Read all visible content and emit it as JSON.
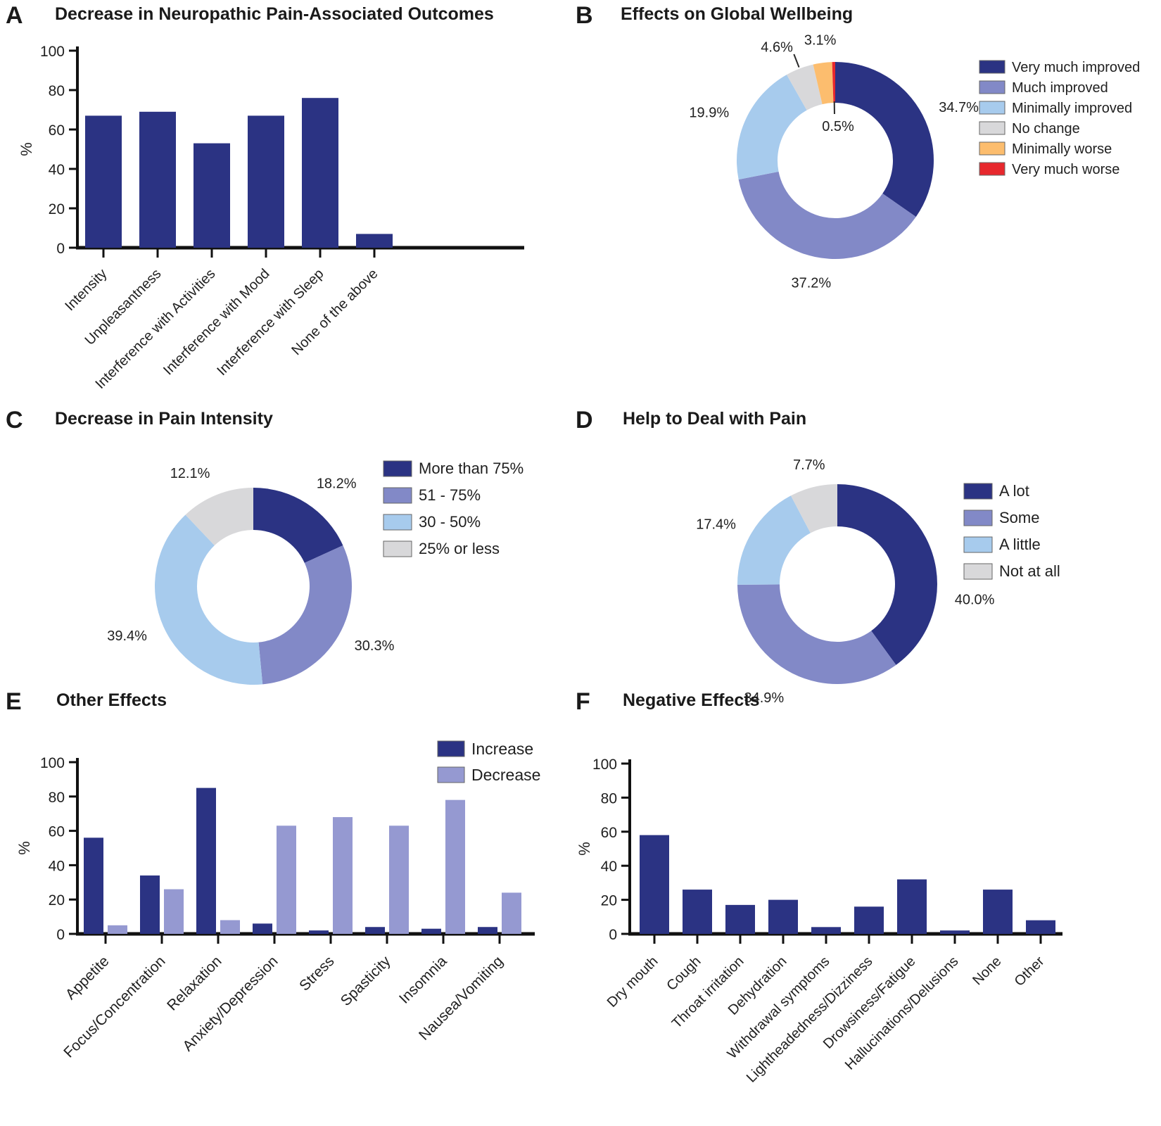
{
  "colors": {
    "navy": "#2b3383",
    "purple": "#8289c7",
    "purple_light": "#9599d1",
    "light_blue": "#a7cbed",
    "gray": "#d8d8da",
    "orange": "#fcbd6e",
    "red": "#e7282d",
    "axis": "#111111",
    "text": "#1f1f1f"
  },
  "chart_data": [
    {
      "panel_letter": "A",
      "title": "Decrease in Neuropathic Pain-Associated Outcomes",
      "type": "bar",
      "ylabel": "%",
      "ylim": [
        0,
        100
      ],
      "yticks": [
        0,
        20,
        40,
        60,
        80,
        100
      ],
      "grid": false,
      "bar_color": "navy",
      "categories": [
        "Intensity",
        "Unpleasantness",
        "Interference with Activities",
        "Interference with Mood",
        "Interference with Sleep",
        "None of the above"
      ],
      "values": [
        67,
        69,
        53,
        67,
        76,
        7
      ]
    },
    {
      "panel_letter": "B",
      "title": "Effects on Global Wellbeing",
      "type": "pie",
      "donut": true,
      "legend_position": "right",
      "slices": [
        {
          "label": "Very much improved",
          "value": 34.7,
          "pct_label": "34.7%",
          "color": "navy"
        },
        {
          "label": "Much improved",
          "value": 37.2,
          "pct_label": "37.2%",
          "color": "purple"
        },
        {
          "label": "Minimally improved",
          "value": 19.9,
          "pct_label": "19.9%",
          "color": "light_blue"
        },
        {
          "label": "No change",
          "value": 4.6,
          "pct_label": "4.6%",
          "color": "gray",
          "leader": true
        },
        {
          "label": "Minimally worse",
          "value": 3.1,
          "pct_label": "3.1%",
          "color": "orange"
        },
        {
          "label": "Very much worse",
          "value": 0.5,
          "pct_label": "0.5%",
          "color": "red",
          "label_inside": true
        }
      ]
    },
    {
      "panel_letter": "C",
      "title": "Decrease in Pain Intensity",
      "type": "pie",
      "donut": true,
      "legend_position": "right",
      "slices": [
        {
          "label": "More than 75%",
          "value": 18.2,
          "pct_label": "18.2%",
          "color": "navy"
        },
        {
          "label": "51 - 75%",
          "value": 30.3,
          "pct_label": "30.3%",
          "color": "purple"
        },
        {
          "label": "30 - 50%",
          "value": 39.4,
          "pct_label": "39.4%",
          "color": "light_blue"
        },
        {
          "label": "25% or less",
          "value": 12.1,
          "pct_label": "12.1%",
          "color": "gray"
        }
      ]
    },
    {
      "panel_letter": "D",
      "title": "Help to Deal with Pain",
      "type": "pie",
      "donut": true,
      "legend_position": "right",
      "slices": [
        {
          "label": "A lot",
          "value": 40.0,
          "pct_label": "40.0%",
          "color": "navy",
          "label_angle": 97
        },
        {
          "label": "Some",
          "value": 34.9,
          "pct_label": "34.9%",
          "color": "purple"
        },
        {
          "label": "A little",
          "value": 17.4,
          "pct_label": "17.4%",
          "color": "light_blue"
        },
        {
          "label": "Not at all",
          "value": 7.7,
          "pct_label": "7.7%",
          "color": "gray"
        }
      ]
    },
    {
      "panel_letter": "E",
      "title": "Other Effects",
      "type": "bar",
      "grouped": true,
      "ylabel": "%",
      "ylim": [
        0,
        100
      ],
      "yticks": [
        0,
        20,
        40,
        60,
        80,
        100
      ],
      "grid": false,
      "legend_position": "top-right",
      "categories": [
        "Appetite",
        "Focus/Concentration",
        "Relaxation",
        "Anxiety/Depression",
        "Stress",
        "Spasticity",
        "Insomnia",
        "Nausea/Vomiting"
      ],
      "series": [
        {
          "name": "Increase",
          "color": "navy",
          "values": [
            56,
            34,
            85,
            6,
            2,
            4,
            3,
            4
          ]
        },
        {
          "name": "Decrease",
          "color": "purple_light",
          "values": [
            5,
            26,
            8,
            63,
            68,
            63,
            78,
            24
          ]
        }
      ]
    },
    {
      "panel_letter": "F",
      "title": "Negative Effects",
      "type": "bar",
      "ylabel": "%",
      "ylim": [
        0,
        100
      ],
      "yticks": [
        0,
        20,
        40,
        60,
        80,
        100
      ],
      "grid": false,
      "bar_color": "navy",
      "categories": [
        "Dry mouth",
        "Cough",
        "Throat irritation",
        "Dehydration",
        "Withdrawal symptoms",
        "Lightheadedness/Dizziness",
        "Drowsiness/Fatigue",
        "Hallucinations/Delusions",
        "None",
        "Other"
      ],
      "values": [
        58,
        26,
        17,
        20,
        4,
        16,
        32,
        2,
        26,
        8
      ]
    }
  ]
}
